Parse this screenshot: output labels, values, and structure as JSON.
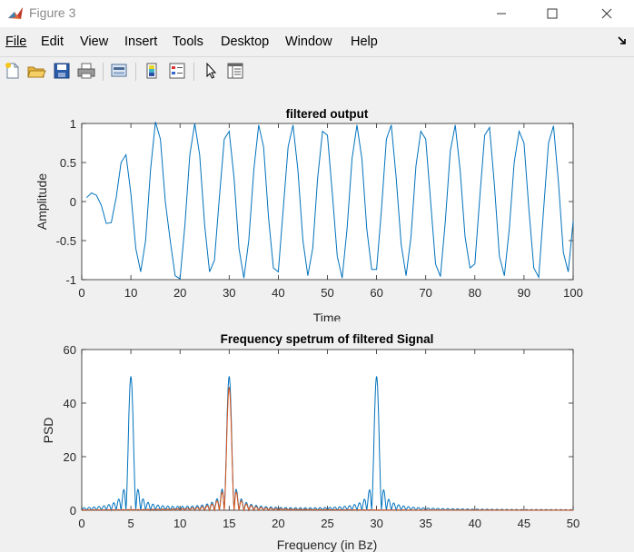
{
  "window": {
    "title": "Figure 3"
  },
  "menu": [
    "File",
    "Edit",
    "View",
    "Insert",
    "Tools",
    "Desktop",
    "Window",
    "Help"
  ],
  "chart_data": [
    {
      "type": "line",
      "title": "filtered output",
      "xlabel": "Time",
      "ylabel": "Amplitude",
      "xlim": [
        0,
        100
      ],
      "ylim": [
        -1,
        1
      ],
      "xticks": [
        "0",
        "10",
        "20",
        "30",
        "40",
        "50",
        "60",
        "70",
        "80",
        "90",
        "100"
      ],
      "yticks": [
        "1",
        "0.5",
        "0",
        "-0.5",
        "-1"
      ],
      "series": [
        {
          "name": "filtered output",
          "color": "#0072bd",
          "x": [
            1,
            2,
            3,
            4,
            5,
            6,
            7,
            8,
            9,
            10,
            11,
            12,
            13,
            14,
            15,
            16,
            17,
            18,
            19,
            20,
            21,
            22,
            23,
            24,
            25,
            26,
            27,
            28,
            29,
            30,
            31,
            32,
            33,
            34,
            35,
            36,
            37,
            38,
            39,
            40,
            41,
            42,
            43,
            44,
            45,
            46,
            47,
            48,
            49,
            50,
            51,
            52,
            53,
            54,
            55,
            56,
            57,
            58,
            59,
            60,
            61,
            62,
            63,
            64,
            65,
            66,
            67,
            68,
            69,
            70,
            71,
            72,
            73,
            74,
            75,
            76,
            77,
            78,
            79,
            80,
            81,
            82,
            83,
            84,
            85,
            86,
            87,
            88,
            89,
            90,
            91,
            92,
            93,
            94,
            95,
            96,
            97,
            98,
            99,
            100
          ],
          "y": [
            0.05,
            0.11,
            0.08,
            -0.05,
            -0.28,
            -0.27,
            0.05,
            0.5,
            0.6,
            0.1,
            -0.6,
            -0.9,
            -0.5,
            0.4,
            1.02,
            0.8,
            0.0,
            -0.5,
            -0.95,
            -0.99,
            -0.3,
            0.6,
            1.0,
            0.6,
            -0.3,
            -0.9,
            -0.75,
            0.05,
            0.8,
            0.9,
            0.3,
            -0.6,
            -0.98,
            -0.5,
            0.4,
            0.98,
            0.7,
            -0.2,
            -0.85,
            -0.9,
            -0.1,
            0.7,
            0.98,
            0.4,
            -0.5,
            -0.95,
            -0.6,
            0.3,
            0.9,
            0.85,
            0.1,
            -0.7,
            -0.98,
            -0.35,
            0.55,
            0.98,
            0.55,
            -0.35,
            -0.87,
            -0.87,
            -0.1,
            0.8,
            0.98,
            0.3,
            -0.55,
            -0.95,
            -0.45,
            0.45,
            0.9,
            0.8,
            0.0,
            -0.8,
            -0.96,
            -0.25,
            0.65,
            0.98,
            0.4,
            -0.45,
            -0.85,
            -0.8,
            0.05,
            0.85,
            0.95,
            0.2,
            -0.7,
            -0.95,
            -0.35,
            0.5,
            0.9,
            0.75,
            -0.1,
            -0.85,
            -0.97,
            -0.1,
            0.75,
            0.97,
            0.25,
            -0.65,
            -0.9,
            -0.25
          ]
        }
      ]
    },
    {
      "type": "line",
      "title": "Frequency spetrum of filtered Signal",
      "xlabel": "Frequency (in Bz)",
      "ylabel": "PSD",
      "xlim": [
        0,
        50
      ],
      "ylim": [
        0,
        60
      ],
      "xticks": [
        "0",
        "5",
        "10",
        "15",
        "20",
        "25",
        "30",
        "35",
        "40",
        "45",
        "50"
      ],
      "yticks": [
        "60",
        "40",
        "20",
        "0"
      ],
      "series": [
        {
          "name": "blue",
          "color": "#0072bd",
          "generator": "sum_of_peaks",
          "peaks": [
            [
              5,
              50
            ],
            [
              15,
              50
            ],
            [
              30,
              50
            ]
          ],
          "peak_width": 0.35,
          "sidelobe_spacing": 0.5
        },
        {
          "name": "orange",
          "color": "#d95319",
          "generator": "sum_of_peaks",
          "peaks": [
            [
              15,
              46
            ]
          ],
          "peak_width": 0.4,
          "sidelobe_spacing": 0.5
        }
      ]
    }
  ]
}
